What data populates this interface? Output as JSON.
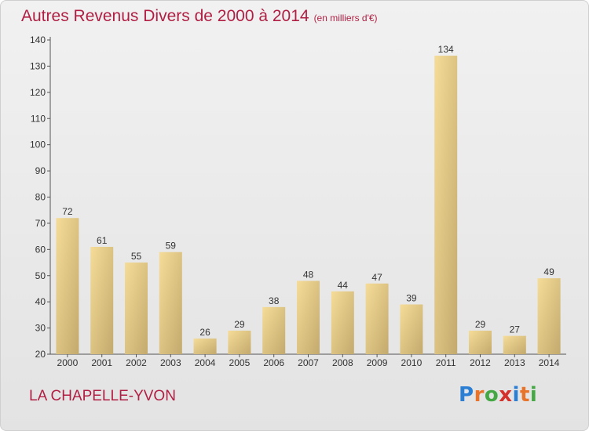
{
  "header": {
    "title": "Autres Revenus Divers de 2000 à 2014",
    "unit": "(en milliers d'€)"
  },
  "footer": {
    "place": "LA CHAPELLE-YVON",
    "brand": [
      "P",
      "r",
      "o",
      "x",
      "i",
      "t",
      "i"
    ],
    "brand_colors": [
      "#2a7fd4",
      "#e8742c",
      "#45a845",
      "#d4302c",
      "#2a7fd4",
      "#e8742c",
      "#45a845"
    ]
  },
  "chart_data": {
    "type": "bar",
    "title": "Autres Revenus Divers de 2000 à 2014",
    "xlabel": "",
    "ylabel": "",
    "categories": [
      "2000",
      "2001",
      "2002",
      "2003",
      "2004",
      "2005",
      "2006",
      "2007",
      "2008",
      "2009",
      "2010",
      "2011",
      "2012",
      "2013",
      "2014"
    ],
    "values": [
      72,
      61,
      55,
      59,
      26,
      29,
      38,
      48,
      44,
      47,
      39,
      134,
      29,
      27,
      49
    ],
    "ylim": [
      20,
      140
    ],
    "yticks": [
      20,
      30,
      40,
      50,
      60,
      70,
      80,
      90,
      100,
      110,
      120,
      130,
      140
    ],
    "grid": false,
    "legend": "none",
    "bar_color_light": "#f5dc98",
    "bar_color_dark": "#c3aa6d"
  }
}
